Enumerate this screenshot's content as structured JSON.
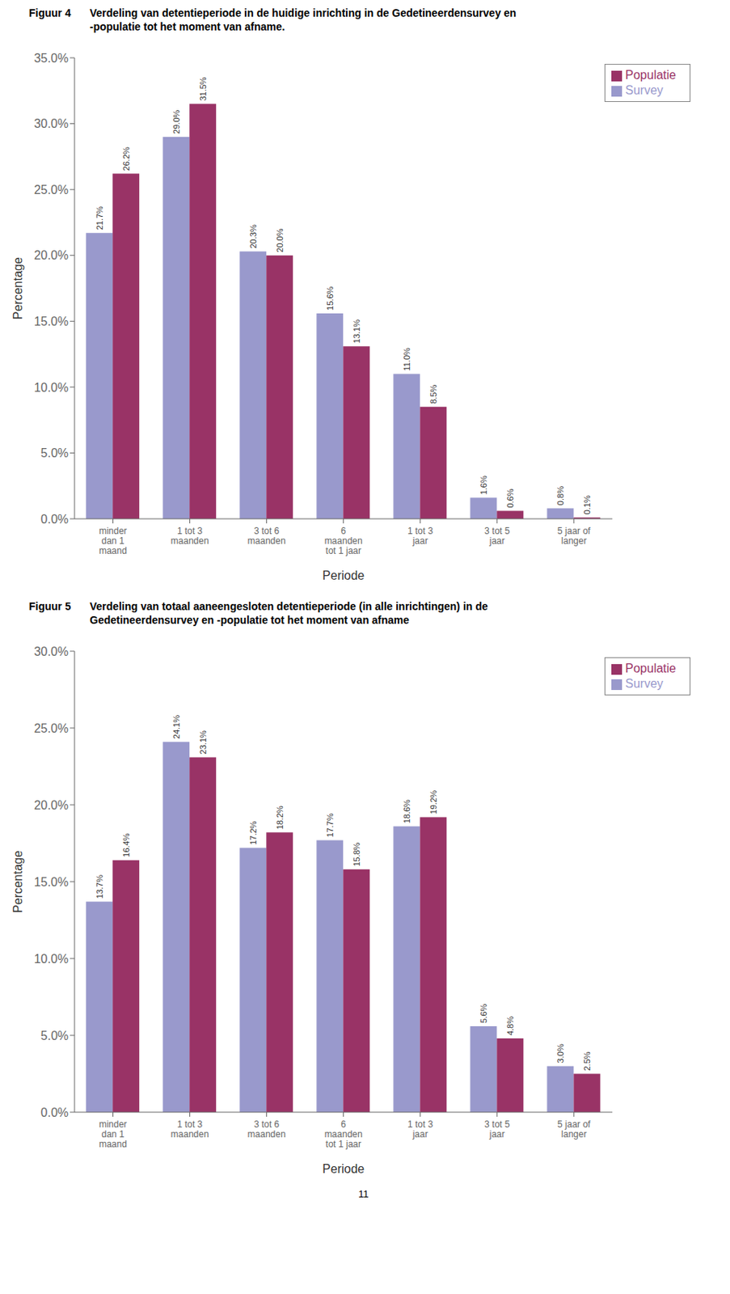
{
  "chart_data": [
    {
      "type": "bar",
      "title": "Figuur 4",
      "subtitle": "Verdeling van detentieperiode in de huidige inrichting in de Gedetineerdensurvey en\n-populatie tot het moment van afname.",
      "categories": [
        "minder\ndan 1\nmaand",
        "1 tot 3\nmaanden",
        "3 tot 6\nmaanden",
        "6\nmaanden\ntot 1 jaar",
        "1 tot 3\njaar",
        "3 tot 5\njaar",
        "5 jaar of\nlanger"
      ],
      "series": [
        {
          "name": "Survey",
          "color": "#9999cc",
          "values": [
            21.7,
            29.0,
            20.3,
            15.6,
            11.0,
            1.6,
            0.8
          ],
          "value_labels": [
            "21.7%",
            "29.0%",
            "20.3%",
            "15.6%",
            "11.0%",
            "1.6%",
            "0.8%"
          ]
        },
        {
          "name": "Populatie",
          "color": "#993366",
          "values": [
            26.2,
            31.5,
            20.0,
            13.1,
            8.5,
            0.6,
            0.1
          ],
          "value_labels": [
            "26.2%",
            "31.5%",
            "20.0%",
            "13.1%",
            "8.5%",
            "0.6%",
            "0.1%"
          ]
        }
      ],
      "xlabel": "Periode",
      "ylabel": "Percentage",
      "ylim": [
        0,
        35
      ],
      "yticks": [
        {
          "value": 0,
          "label": "0.0%"
        },
        {
          "value": 5,
          "label": "5.0%"
        },
        {
          "value": 10,
          "label": "10.0%"
        },
        {
          "value": 15,
          "label": "15.0%"
        },
        {
          "value": 20,
          "label": "20.0%"
        },
        {
          "value": 25,
          "label": "25.0%"
        },
        {
          "value": 30,
          "label": "30.0%"
        },
        {
          "value": 35,
          "label": "35.0%"
        }
      ],
      "grid": false,
      "legend": "upper right",
      "data_labels": true
    },
    {
      "type": "bar",
      "title": "Figuur 5",
      "subtitle": "Verdeling van totaal aaneengesloten detentieperiode (in alle inrichtingen) in de\nGedetineerdensurvey en -populatie tot het moment van afname",
      "categories": [
        "minder\ndan 1\nmaand",
        "1 tot 3\nmaanden",
        "3 tot 6\nmaanden",
        "6\nmaanden\ntot 1 jaar",
        "1 tot 3\njaar",
        "3 tot 5\njaar",
        "5 jaar of\nlanger"
      ],
      "series": [
        {
          "name": "Survey",
          "color": "#9999cc",
          "values": [
            13.7,
            24.1,
            17.2,
            17.7,
            18.6,
            5.6,
            3.0
          ],
          "value_labels": [
            "13.7%",
            "24.1%",
            "17.2%",
            "17.7%",
            "18.6%",
            "5.6%",
            "3.0%"
          ]
        },
        {
          "name": "Populatie",
          "color": "#993366",
          "values": [
            16.4,
            23.1,
            18.2,
            15.8,
            19.2,
            4.8,
            2.5
          ],
          "value_labels": [
            "16.4%",
            "23.1%",
            "18.2%",
            "15.8%",
            "19.2%",
            "4.8%",
            "2.5%"
          ]
        }
      ],
      "xlabel": "Periode",
      "ylabel": "Percentage",
      "ylim": [
        0,
        30
      ],
      "yticks": [
        {
          "value": 0,
          "label": "0.0%"
        },
        {
          "value": 5,
          "label": "5.0%"
        },
        {
          "value": 10,
          "label": "10.0%"
        },
        {
          "value": 15,
          "label": "15.0%"
        },
        {
          "value": 20,
          "label": "20.0%"
        },
        {
          "value": 25,
          "label": "25.0%"
        },
        {
          "value": 30,
          "label": "30.0%"
        }
      ],
      "grid": false,
      "legend": "upper right",
      "data_labels": true,
      "annotations": [
        "11"
      ]
    }
  ]
}
